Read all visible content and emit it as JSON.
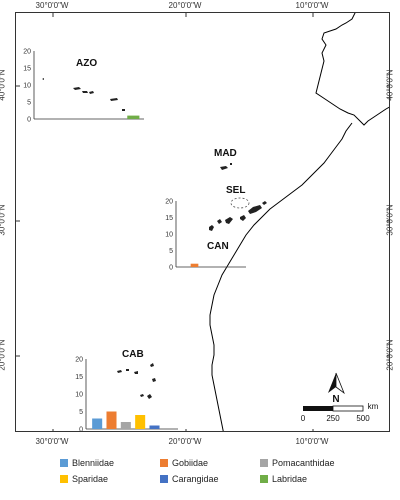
{
  "ticks": {
    "longitude": [
      "30°0'0\"W",
      "20°0'0\"W",
      "10°0'0\"W"
    ],
    "latitude": [
      "40°0'0\"N",
      "30°0'0\"N",
      "20°0'0\"N"
    ]
  },
  "regions": {
    "azo": "AZO",
    "mad": "MAD",
    "sel": "SEL",
    "can": "CAN",
    "cab": "CAB"
  },
  "families": [
    {
      "name": "Blenniidae",
      "color": "#5b9bd5"
    },
    {
      "name": "Gobiidae",
      "color": "#ed7d31"
    },
    {
      "name": "Pomacanthidae",
      "color": "#a5a5a5"
    },
    {
      "name": "Sparidae",
      "color": "#ffc000"
    },
    {
      "name": "Carangidae",
      "color": "#4472c4"
    },
    {
      "name": "Labridae",
      "color": "#70ad47"
    }
  ],
  "scale_bar": {
    "labels": [
      "0",
      "250",
      "500"
    ],
    "unit": "km"
  },
  "north_arrow": {
    "label": "N"
  },
  "chart_data": [
    {
      "type": "bar",
      "region": "AZO",
      "categories": [
        "Blenniidae",
        "Gobiidae",
        "Pomacanthidae",
        "Sparidae",
        "Carangidae",
        "Labridae"
      ],
      "values": [
        0,
        0,
        0,
        0,
        0,
        1
      ],
      "ylim": [
        0,
        20
      ],
      "yticks": [
        "0",
        "5",
        "10",
        "15",
        "20"
      ]
    },
    {
      "type": "bar",
      "region": "CAN",
      "categories": [
        "Blenniidae",
        "Gobiidae",
        "Pomacanthidae",
        "Sparidae",
        "Carangidae",
        "Labridae"
      ],
      "values": [
        0,
        1,
        0,
        0,
        0,
        0
      ],
      "ylim": [
        0,
        20
      ],
      "yticks": [
        "0",
        "5",
        "10",
        "15",
        "20"
      ]
    },
    {
      "type": "bar",
      "region": "CAB",
      "categories": [
        "Blenniidae",
        "Gobiidae",
        "Pomacanthidae",
        "Sparidae",
        "Carangidae",
        "Labridae"
      ],
      "values": [
        3,
        5,
        2,
        4,
        1,
        0
      ],
      "ylim": [
        0,
        20
      ],
      "yticks": [
        "0",
        "5",
        "10",
        "15",
        "20"
      ]
    }
  ]
}
